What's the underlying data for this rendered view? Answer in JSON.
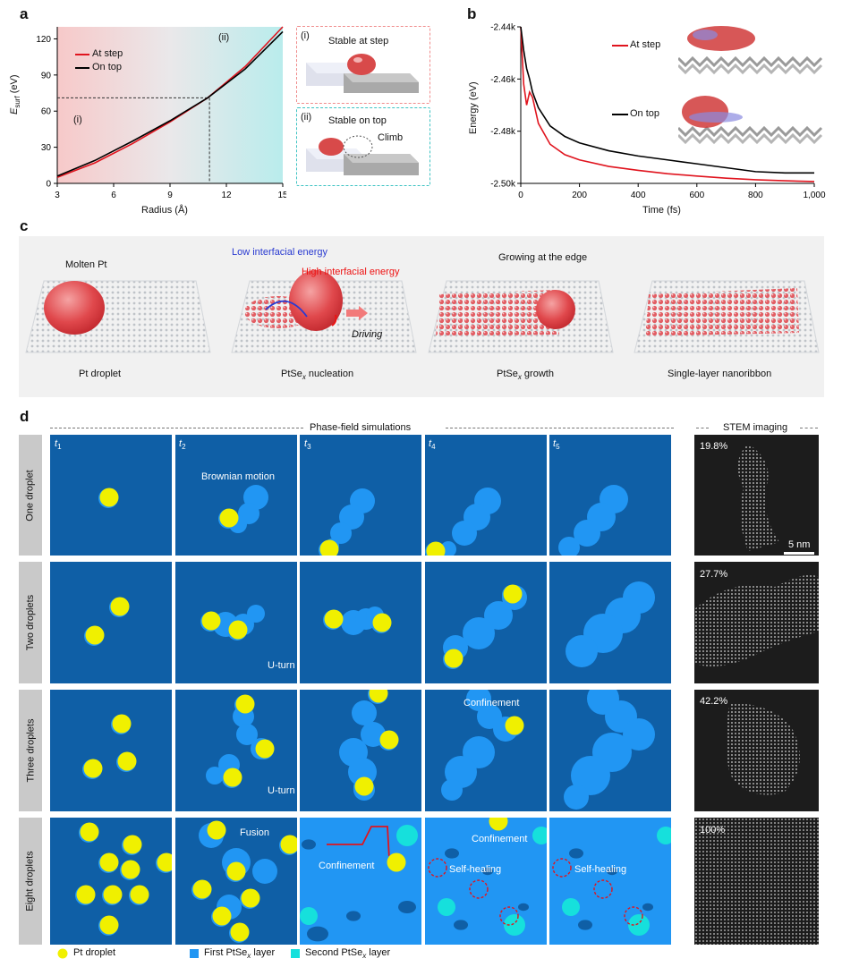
{
  "panels": {
    "a": "a",
    "b": "b",
    "c": "c",
    "d": "d"
  },
  "a": {
    "y_label_main": "E",
    "y_label_sub": "surf",
    "y_label_unit": " (eV)",
    "x_label": "Radius (Å)",
    "legend": [
      "At step",
      "On top"
    ],
    "region_i": "(i)",
    "region_ii": "(ii)",
    "x_ticks": [
      "3",
      "6",
      "9",
      "12",
      "15"
    ],
    "y_ticks": [
      "0",
      "30",
      "60",
      "90",
      "120"
    ],
    "inset_i_num": "(i)",
    "inset_i_text": "Stable at step",
    "inset_ii_num": "(ii)",
    "inset_ii_text": "Stable on top",
    "inset_ii_climb": "Climb"
  },
  "b": {
    "y_label": "Energy (eV)",
    "x_label": "Time (fs)",
    "legend_step": "At step",
    "legend_top": "On top",
    "x_ticks": [
      "0",
      "200",
      "400",
      "600",
      "800",
      "1,000"
    ],
    "y_ticks": [
      "-2.44k",
      "-2.46k",
      "-2.48k",
      "-2.50k"
    ]
  },
  "c": {
    "molten": "Molten Pt",
    "low": "Low interfacial energy",
    "high": "High interfacial energy",
    "driving": "Driving",
    "growing": "Growing at the edge",
    "steps": [
      "Pt droplet",
      "PtSe",
      "nucleation",
      "PtSe",
      "growth",
      "Single-layer nanoribbon"
    ],
    "x_sub": "x"
  },
  "d": {
    "phase_title": "Phase-field simulations",
    "stem_title": "STEM imaging",
    "times": [
      "t",
      "t",
      "t",
      "t",
      "t"
    ],
    "time_subs": [
      "1",
      "2",
      "3",
      "4",
      "5"
    ],
    "rows": [
      "One droplet",
      "Two droplets",
      "Three droplets",
      "Eight droplets"
    ],
    "coverage": [
      "19.8%",
      "27.7%",
      "42.2%",
      "100%"
    ],
    "scale": "5 nm",
    "annotations": {
      "brownian": "Brownian motion",
      "uturn": "U-turn",
      "confinement": "Confinement",
      "fusion": "Fusion",
      "selfhealing": "Self-healing"
    },
    "legend": [
      "Pt droplet",
      "First PtSe",
      "Second PtSe"
    ],
    "legend_x": "x",
    "legend_layer": " layer"
  },
  "chart_data": [
    {
      "type": "line",
      "title": "",
      "xlabel": "Radius (Å)",
      "ylabel": "E_surf (eV)",
      "xlim": [
        3,
        15
      ],
      "ylim": [
        0,
        130
      ],
      "series": [
        {
          "name": "At step",
          "x": [
            3,
            5,
            7,
            9,
            11,
            13,
            15
          ],
          "y": [
            5,
            17,
            33,
            51,
            71,
            97,
            130
          ]
        },
        {
          "name": "On top",
          "x": [
            3,
            5,
            7,
            9,
            11,
            13,
            15
          ],
          "y": [
            6,
            19,
            35,
            52,
            71,
            95,
            126
          ]
        }
      ],
      "annotations": [
        "(i)",
        "(ii)"
      ]
    },
    {
      "type": "line",
      "title": "",
      "xlabel": "Time (fs)",
      "ylabel": "Energy (eV)",
      "xlim": [
        0,
        1000
      ],
      "ylim": [
        -2500,
        -2440
      ],
      "series": [
        {
          "name": "At step",
          "x": [
            0,
            10,
            20,
            30,
            40,
            60,
            100,
            150,
            200,
            300,
            400,
            500,
            600,
            700,
            800,
            900,
            1000
          ],
          "y": [
            -2440,
            -2462,
            -2470,
            -2465,
            -2467,
            -2477,
            -2485,
            -2489,
            -2491,
            -2493.5,
            -2495,
            -2496.3,
            -2497.2,
            -2498,
            -2498.6,
            -2499,
            -2499.3
          ]
        },
        {
          "name": "On top",
          "x": [
            0,
            10,
            20,
            30,
            40,
            60,
            100,
            150,
            200,
            300,
            400,
            500,
            600,
            700,
            800,
            900,
            1000
          ],
          "y": [
            -2440,
            -2449,
            -2456,
            -2460,
            -2465,
            -2471,
            -2478,
            -2482,
            -2484.5,
            -2487.5,
            -2489.5,
            -2491,
            -2492.5,
            -2494,
            -2495.5,
            -2496,
            -2496
          ]
        }
      ]
    }
  ]
}
